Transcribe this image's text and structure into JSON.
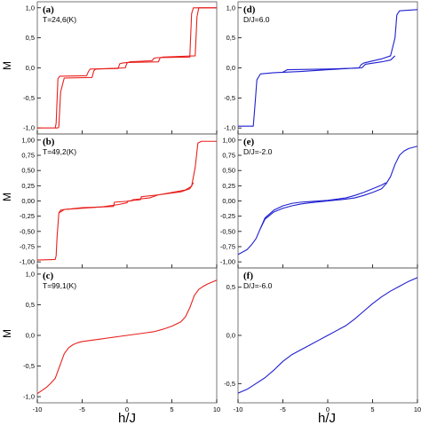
{
  "figure": {
    "x_axis_label": "h/J",
    "y_axis_label": "M",
    "line_colors": {
      "red": "#e8201c",
      "blue": "#1f1fd0"
    }
  },
  "chart_data": [
    {
      "type": "line",
      "panel": "(a)",
      "annotation": "T=24,6(K)",
      "color": "#e8201c",
      "xlim": [
        -10,
        10
      ],
      "ylim": [
        -1.1,
        1.1
      ],
      "yticks": [
        -1.0,
        -0.5,
        0.0,
        0.5,
        1.0
      ],
      "ytick_labels": [
        "-1,0",
        "-0,5",
        "0,0",
        "0,5",
        "1,0"
      ],
      "series": [
        {
          "x": [
            -8.0,
            -7.9,
            -7.7,
            -7.5,
            -4.5,
            -4.3,
            -4.1,
            -1.0,
            -0.8,
            -0.5,
            0.0,
            3.5,
            3.7,
            4.0,
            7.6,
            7.8,
            8.0,
            10.0
          ],
          "y": [
            -1.0,
            -0.92,
            -0.18,
            -0.14,
            -0.13,
            -0.06,
            -0.02,
            -0.01,
            0.07,
            0.08,
            0.09,
            0.1,
            0.17,
            0.18,
            0.2,
            0.85,
            1.0,
            1.0
          ]
        },
        {
          "x": [
            -10.0,
            -7.7,
            -7.6,
            -7.4,
            -7.0,
            -3.9,
            -3.7,
            -3.5,
            -0.2,
            0.0,
            0.3,
            2.8,
            3.0,
            3.3,
            7.0,
            7.2,
            7.4,
            10.0
          ],
          "y": [
            -1.0,
            -1.0,
            -0.98,
            -0.4,
            -0.17,
            -0.16,
            -0.05,
            -0.02,
            0.0,
            0.08,
            0.1,
            0.12,
            0.16,
            0.17,
            0.18,
            0.9,
            1.0,
            1.0
          ]
        }
      ]
    },
    {
      "type": "line",
      "panel": "(b)",
      "annotation": "T=49,2(K)",
      "color": "#e8201c",
      "xlim": [
        -10,
        10
      ],
      "ylim": [
        -1.1,
        1.1
      ],
      "yticks": [
        -1.0,
        -0.75,
        -0.5,
        -0.25,
        0.0,
        0.25,
        0.5,
        0.75,
        1.0
      ],
      "ytick_labels": [
        "-1,00",
        "-0,75",
        "-0,50",
        "-0,25",
        "0,00",
        "0,25",
        "0,50",
        "0,75",
        "1,00"
      ],
      "series": [
        {
          "x": [
            -10.0,
            -8.0,
            -7.9,
            -7.8,
            -7.6,
            -7.0,
            -5.0,
            -3.0,
            -1.0,
            0.0,
            0.1,
            1.5,
            1.6,
            3.5,
            5.0,
            6.5,
            7.2,
            7.6,
            7.9,
            8.3,
            10.0
          ],
          "y": [
            -0.97,
            -0.96,
            -0.9,
            -0.6,
            -0.2,
            -0.14,
            -0.11,
            -0.1,
            -0.06,
            -0.03,
            0.0,
            0.02,
            0.07,
            0.1,
            0.14,
            0.18,
            0.24,
            0.55,
            0.95,
            0.98,
            0.98
          ]
        },
        {
          "x": [
            -7.6,
            -7.4,
            -7.0,
            -5.0,
            -3.0,
            -1.5,
            -1.4,
            0.5,
            0.6,
            2.5,
            3.5,
            6.0,
            7.0,
            7.4
          ],
          "y": [
            -0.2,
            -0.15,
            -0.14,
            -0.12,
            -0.1,
            -0.09,
            -0.02,
            0.0,
            0.02,
            0.05,
            0.1,
            0.15,
            0.2,
            0.3
          ]
        }
      ]
    },
    {
      "type": "line",
      "panel": "(c)",
      "annotation": "T=99,1(K)",
      "color": "#e8201c",
      "xlim": [
        -10,
        10
      ],
      "ylim": [
        -1.1,
        1.1
      ],
      "yticks": [
        -1.0,
        -0.5,
        0.0,
        0.5,
        1.0
      ],
      "ytick_labels": [
        "-1,0",
        "-0,5",
        "0,0",
        "0,5",
        "1,0"
      ],
      "series": [
        {
          "x": [
            -10.0,
            -9.5,
            -9.0,
            -8.5,
            -8.0,
            -7.5,
            -7.0,
            -6.5,
            -6.0,
            -5.5,
            -5.0,
            -4.0,
            -3.0,
            -2.0,
            -1.0,
            0.0,
            1.0,
            2.0,
            3.0,
            4.0,
            5.0,
            6.0,
            6.5,
            7.0,
            7.5,
            8.0,
            8.5,
            9.0,
            9.5,
            10.0
          ],
          "y": [
            -0.95,
            -0.9,
            -0.85,
            -0.78,
            -0.7,
            -0.5,
            -0.3,
            -0.2,
            -0.15,
            -0.12,
            -0.1,
            -0.08,
            -0.06,
            -0.04,
            -0.02,
            0.0,
            0.02,
            0.04,
            0.06,
            0.1,
            0.15,
            0.22,
            0.3,
            0.45,
            0.65,
            0.75,
            0.8,
            0.84,
            0.87,
            0.9
          ]
        }
      ]
    },
    {
      "type": "line",
      "panel": "(d)",
      "annotation": "D/J=6.0",
      "color": "#1f1fd0",
      "xlim": [
        -10,
        10
      ],
      "ylim": [
        -1.1,
        1.1
      ],
      "yticks": [
        -1.0,
        -0.5,
        0.0,
        0.5,
        1.0
      ],
      "ytick_labels": [
        "-1,0",
        "-0,5",
        "0,0",
        "0,5",
        "1,0"
      ],
      "series": [
        {
          "x": [
            -10.0,
            -8.3,
            -8.1,
            -7.9,
            -7.5,
            -6.0,
            -3.0,
            0.0,
            3.5,
            3.7,
            4.0,
            6.0,
            7.0,
            7.5,
            7.7,
            8.0,
            10.0
          ],
          "y": [
            -0.97,
            -0.97,
            -0.6,
            -0.2,
            -0.1,
            -0.08,
            -0.06,
            -0.03,
            0.0,
            0.05,
            0.08,
            0.15,
            0.2,
            0.5,
            0.88,
            0.95,
            0.97
          ]
        },
        {
          "x": [
            -5.0,
            -4.5,
            0.0,
            3.8,
            4.2,
            6.0,
            7.0,
            7.5
          ],
          "y": [
            -0.07,
            -0.03,
            -0.02,
            0.0,
            0.06,
            0.1,
            0.13,
            0.2
          ]
        }
      ]
    },
    {
      "type": "line",
      "panel": "(e)",
      "annotation": "D/J=-2.0",
      "color": "#1f1fd0",
      "xlim": [
        -10,
        10
      ],
      "ylim": [
        -1.1,
        1.1
      ],
      "yticks": [
        -1.0,
        -0.75,
        -0.5,
        -0.25,
        0.0,
        0.25,
        0.5,
        0.75,
        1.0
      ],
      "ytick_labels": [
        "-1,00",
        "-0,75",
        "-0,50",
        "-0,25",
        "0,00",
        "0,25",
        "0,50",
        "0,75",
        "1,00"
      ],
      "series": [
        {
          "x": [
            -10.0,
            -9.0,
            -8.5,
            -8.0,
            -7.5,
            -7.0,
            -6.0,
            -5.0,
            -4.0,
            -3.0,
            -2.0,
            0.0,
            2.0,
            3.0,
            4.0,
            5.0,
            6.0,
            6.5,
            7.0,
            7.5,
            8.0,
            8.5,
            9.0,
            10.0
          ],
          "y": [
            -0.88,
            -0.8,
            -0.72,
            -0.62,
            -0.45,
            -0.3,
            -0.18,
            -0.12,
            -0.08,
            -0.05,
            -0.03,
            0.0,
            0.03,
            0.05,
            0.09,
            0.14,
            0.2,
            0.28,
            0.4,
            0.6,
            0.75,
            0.82,
            0.86,
            0.9
          ]
        },
        {
          "x": [
            -7.5,
            -7.0,
            -6.0,
            -5.0,
            -4.0,
            -3.0,
            -2.0,
            0.0,
            2.0,
            3.0,
            4.0,
            5.0,
            6.0,
            6.5
          ],
          "y": [
            -0.45,
            -0.28,
            -0.15,
            -0.08,
            -0.04,
            -0.02,
            -0.01,
            0.01,
            0.05,
            0.09,
            0.14,
            0.2,
            0.26,
            0.3
          ]
        }
      ]
    },
    {
      "type": "line",
      "panel": "(f)",
      "annotation": "D/J=-6.0",
      "color": "#1f1fd0",
      "xlim": [
        -10,
        10
      ],
      "ylim": [
        -0.7,
        0.7
      ],
      "yticks": [
        -0.5,
        0.0,
        0.5
      ],
      "ytick_labels": [
        "-0,5",
        "0,0",
        "0,5"
      ],
      "series": [
        {
          "x": [
            -10.0,
            -9.0,
            -8.0,
            -7.0,
            -6.0,
            -5.0,
            -4.0,
            -3.0,
            -2.0,
            -1.0,
            0.0,
            1.0,
            2.0,
            3.0,
            4.0,
            5.0,
            6.0,
            7.0,
            8.0,
            9.0,
            10.0
          ],
          "y": [
            -0.6,
            -0.56,
            -0.5,
            -0.44,
            -0.36,
            -0.27,
            -0.2,
            -0.15,
            -0.1,
            -0.05,
            0.0,
            0.05,
            0.1,
            0.17,
            0.25,
            0.33,
            0.4,
            0.46,
            0.51,
            0.56,
            0.6
          ]
        }
      ]
    }
  ]
}
